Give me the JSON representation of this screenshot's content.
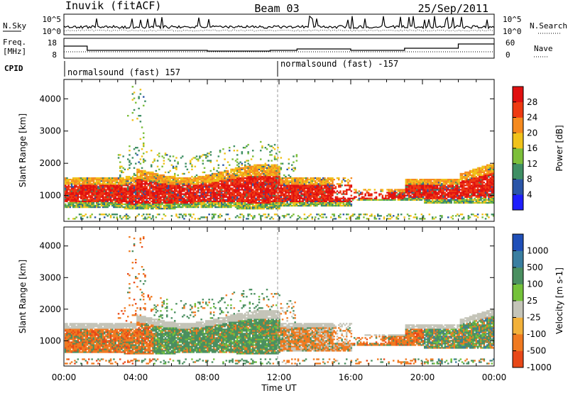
{
  "header": {
    "station": "Inuvik (fitACF)",
    "beam": "Beam 03",
    "date": "25/Sep/2011"
  },
  "noise_panel": {
    "left_label": "N.Sky",
    "left_ticks": [
      "10^5",
      "10^0"
    ],
    "right_label": "N.Search",
    "right_ticks": [
      "10^5",
      "10^0"
    ]
  },
  "freq_panel": {
    "left_label_1": "Freq.",
    "left_label_2": "[MHz]",
    "left_ticks": [
      "18",
      "8"
    ],
    "right_label": "Nave",
    "right_ticks": [
      "60",
      "0"
    ]
  },
  "cpid": {
    "label": "CPID",
    "mode_1": "normalsound (fast) 157",
    "mode_2": "normalsound (fast) -157"
  },
  "chart_data": [
    {
      "type": "heatmap",
      "name": "power",
      "ylabel": "Slant Range [km]",
      "y_ticks": [
        "1000",
        "2000",
        "3000",
        "4000"
      ],
      "y_tick_values": [
        1000,
        2000,
        3000,
        4000
      ],
      "ylim": [
        200,
        4600
      ],
      "xlim_hours": [
        0,
        24
      ],
      "colorbar_label": "Power [dB]",
      "colorbar_ticks": [
        "4",
        "8",
        "12",
        "16",
        "20",
        "24",
        "28"
      ],
      "colorbar_colors": [
        "#1e1eff",
        "#2a55a8",
        "#3f8f64",
        "#7cbf3a",
        "#f0c21a",
        "#f58a1e",
        "#ee3a12",
        "#e01010"
      ]
    },
    {
      "type": "heatmap",
      "name": "velocity",
      "ylabel": "Slant Range [km]",
      "y_ticks": [
        "1000",
        "2000",
        "3000",
        "4000"
      ],
      "y_tick_values": [
        1000,
        2000,
        3000,
        4000
      ],
      "ylim": [
        200,
        4600
      ],
      "xlim_hours": [
        0,
        24
      ],
      "colorbar_label": "Velocity [m s-1]",
      "colorbar_ticks": [
        "1000",
        "500",
        "100",
        "25",
        "-25",
        "-100",
        "-500",
        "-1000"
      ],
      "colorbar_colors": [
        "#1f4fb8",
        "#3a7ea0",
        "#4a8f60",
        "#74c23a",
        "#c4c4b8",
        "#f2b13a",
        "#f07a20",
        "#e84818",
        "#e01818"
      ]
    }
  ],
  "x_axis": {
    "ticks": [
      "00:00",
      "04:00",
      "08:00",
      "12:00",
      "16:00",
      "20:00",
      "00:00"
    ],
    "label": "Time UT"
  }
}
